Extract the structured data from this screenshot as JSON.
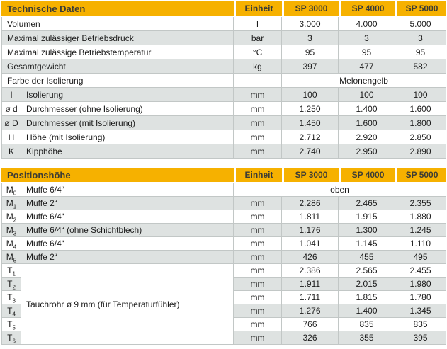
{
  "colors": {
    "header_bg": "#F6B100",
    "header_text": "#3C3C35",
    "row_alt_bg": "#DEE2E1",
    "row_bg": "#FFFFFF",
    "border": "#C2C7C6",
    "body_text": "#1C1C1C"
  },
  "columns": {
    "unit": "Einheit",
    "models": [
      "SP 3000",
      "SP 4000",
      "SP 5000"
    ]
  },
  "sections": [
    {
      "title": "Technische Daten",
      "rows": [
        {
          "label": "Volumen",
          "unit": "l",
          "values": [
            "3.000",
            "4.000",
            "5.000"
          ]
        },
        {
          "label": "Maximal zulässiger Betriebsdruck",
          "unit": "bar",
          "values": [
            "3",
            "3",
            "3"
          ]
        },
        {
          "label": "Maximal zulässige Betriebstemperatur",
          "unit": "°C",
          "values": [
            "95",
            "95",
            "95"
          ]
        },
        {
          "label": "Gesamtgewicht",
          "unit": "kg",
          "values": [
            "397",
            "477",
            "582"
          ]
        },
        {
          "label": "Farbe der Isolierung",
          "unit": "",
          "value_span": "Melonengelb"
        },
        {
          "code": "I",
          "label": "Isolierung",
          "unit": "mm",
          "values": [
            "100",
            "100",
            "100"
          ]
        },
        {
          "code": "ø d",
          "label": "Durchmesser (ohne Isolierung)",
          "unit": "mm",
          "values": [
            "1.250",
            "1.400",
            "1.600"
          ]
        },
        {
          "code": "ø D",
          "label": "Durchmesser (mit Isolierung)",
          "unit": "mm",
          "values": [
            "1.450",
            "1.600",
            "1.800"
          ]
        },
        {
          "code": "H",
          "label": "Höhe (mit Isolierung)",
          "unit": "mm",
          "values": [
            "2.712",
            "2.920",
            "2.850"
          ]
        },
        {
          "code": "K",
          "label": "Kipphöhe",
          "unit": "mm",
          "values": [
            "2.740",
            "2.950",
            "2.890"
          ]
        }
      ]
    },
    {
      "title": "Positionshöhe",
      "rows": [
        {
          "code": "M",
          "code_sub": "0",
          "label": "Muffe 6/4“",
          "full_span": "oben"
        },
        {
          "code": "M",
          "code_sub": "1",
          "label": "Muffe 2“",
          "unit": "mm",
          "values": [
            "2.286",
            "2.465",
            "2.355"
          ]
        },
        {
          "code": "M",
          "code_sub": "2",
          "label": "Muffe 6/4“",
          "unit": "mm",
          "values": [
            "1.811",
            "1.915",
            "1.880"
          ]
        },
        {
          "code": "M",
          "code_sub": "3",
          "label": "Muffe 6/4“ (ohne Schichtblech)",
          "unit": "mm",
          "values": [
            "1.176",
            "1.300",
            "1.245"
          ]
        },
        {
          "code": "M",
          "code_sub": "4",
          "label": "Muffe 6/4“",
          "unit": "mm",
          "values": [
            "1.041",
            "1.145",
            "1.110"
          ]
        },
        {
          "code": "M",
          "code_sub": "5",
          "label": "Muffe 2“",
          "unit": "mm",
          "values": [
            "426",
            "455",
            "495"
          ]
        },
        {
          "code": "T",
          "code_sub": "1",
          "label": "Tauchrohr ø 9 mm (für Temperaturfühler)",
          "label_rowspan": 6,
          "unit": "mm",
          "values": [
            "2.386",
            "2.565",
            "2.455"
          ]
        },
        {
          "code": "T",
          "code_sub": "2",
          "skip_label": true,
          "unit": "mm",
          "values": [
            "1.911",
            "2.015",
            "1.980"
          ]
        },
        {
          "code": "T",
          "code_sub": "3",
          "skip_label": true,
          "unit": "mm",
          "values": [
            "1.711",
            "1.815",
            "1.780"
          ]
        },
        {
          "code": "T",
          "code_sub": "4",
          "skip_label": true,
          "unit": "mm",
          "values": [
            "1.276",
            "1.400",
            "1.345"
          ]
        },
        {
          "code": "T",
          "code_sub": "5",
          "skip_label": true,
          "unit": "mm",
          "values": [
            "766",
            "835",
            "835"
          ]
        },
        {
          "code": "T",
          "code_sub": "6",
          "skip_label": true,
          "unit": "mm",
          "values": [
            "326",
            "355",
            "395"
          ]
        }
      ]
    }
  ]
}
